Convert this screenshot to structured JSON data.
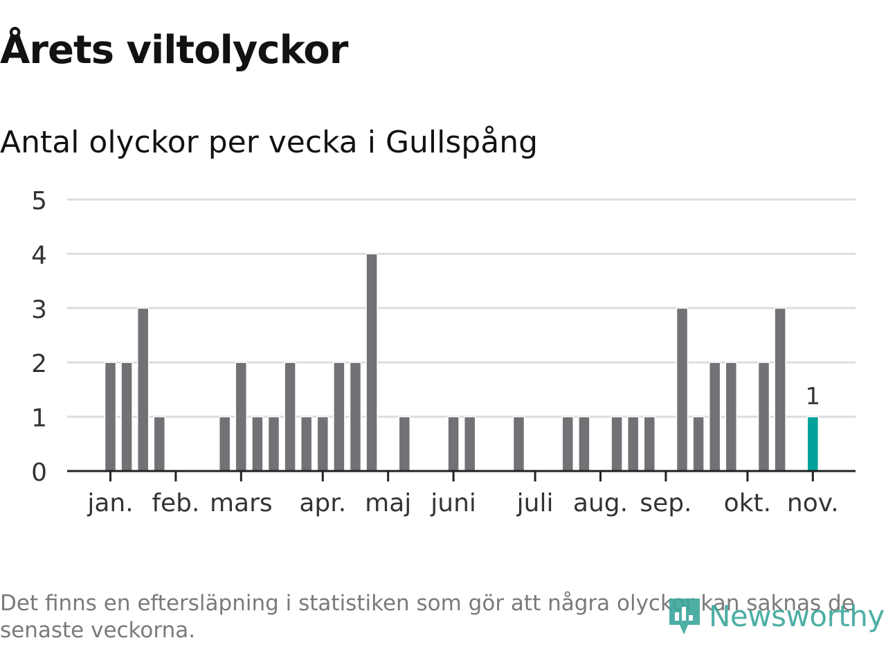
{
  "title": "Årets viltolyckor",
  "subtitle": "Antal olyckor per vecka i Gullspång",
  "footnote": "Det finns en eftersläpning i statistiken som gör att några olyckor kan saknas de senaste veckorna.",
  "logo": {
    "text": "Newsworthy",
    "icon": "newsworthy-logo-icon"
  },
  "colors": {
    "bar": "#727176",
    "highlight": "#00a19a",
    "grid": "#dddddd",
    "axis": "#222222",
    "text": "#333333"
  },
  "chart_data": {
    "type": "bar",
    "x_unit": "week",
    "x": [
      2,
      3,
      4,
      5,
      6,
      7,
      8,
      9,
      10,
      11,
      12,
      13,
      14,
      15,
      16,
      17,
      18,
      19,
      20,
      21,
      22,
      23,
      24,
      25,
      26,
      27,
      28,
      29,
      30,
      31,
      32,
      33,
      34,
      35,
      36,
      37,
      38,
      39,
      40,
      41,
      42,
      43,
      44,
      45
    ],
    "values": [
      2,
      2,
      3,
      1,
      0,
      0,
      0,
      1,
      2,
      1,
      1,
      2,
      1,
      1,
      2,
      2,
      4,
      0,
      1,
      0,
      0,
      1,
      1,
      0,
      0,
      1,
      0,
      0,
      1,
      1,
      0,
      1,
      1,
      1,
      0,
      3,
      1,
      2,
      2,
      0,
      2,
      3,
      0,
      1
    ],
    "highlight_index": 43,
    "highlight_label": "1",
    "ylim": [
      0,
      5
    ],
    "yticks": [
      "0",
      "1",
      "2",
      "3",
      "4",
      "5"
    ],
    "month_ticks": [
      {
        "label": "jan.",
        "x": 2.0
      },
      {
        "label": "feb.",
        "x": 6.0
      },
      {
        "label": "mars",
        "x": 10.0
      },
      {
        "label": "apr.",
        "x": 15.0
      },
      {
        "label": "maj",
        "x": 19.0
      },
      {
        "label": "juni",
        "x": 23.0
      },
      {
        "label": "juli",
        "x": 28.0
      },
      {
        "label": "aug.",
        "x": 32.0
      },
      {
        "label": "sep.",
        "x": 36.0
      },
      {
        "label": "okt.",
        "x": 41.0
      },
      {
        "label": "nov.",
        "x": 45.0
      }
    ],
    "grid": true,
    "legend": "none"
  }
}
